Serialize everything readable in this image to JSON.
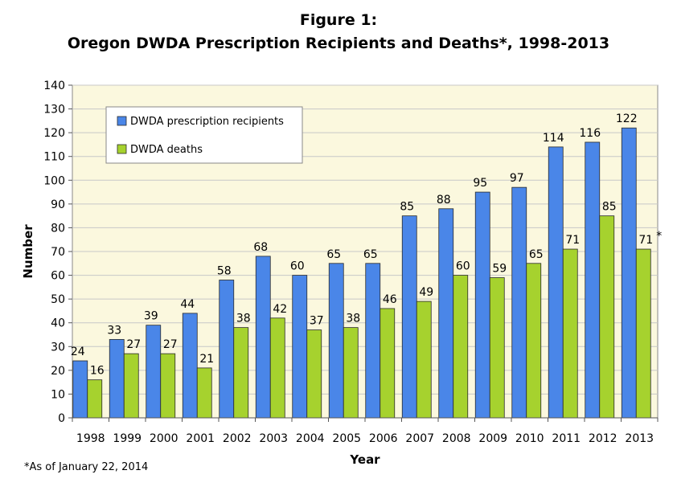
{
  "figure_label": "Figure 1:",
  "title": "Oregon DWDA Prescription Recipients and Deaths*,  1998-2013",
  "footnote": "*As of January 22, 2014",
  "colors": {
    "recipients": "#4a86e8",
    "deaths": "#a6d22e",
    "plot_bg": "#fbf8de",
    "grid": "#c8c8c8"
  },
  "chart_data": {
    "type": "bar",
    "title": "Oregon DWDA Prescription Recipients and Deaths*,  1998-2013",
    "xlabel": "Year",
    "ylabel": "Number",
    "ylim": [
      0,
      140
    ],
    "yticks": [
      0,
      10,
      20,
      30,
      40,
      50,
      60,
      70,
      80,
      90,
      100,
      110,
      120,
      130,
      140
    ],
    "grid": true,
    "legend_position": "top-left",
    "categories": [
      "1998",
      "1999",
      "2000",
      "2001",
      "2002",
      "2003",
      "2004",
      "2005",
      "2006",
      "2007",
      "2008",
      "2009",
      "2010",
      "2011",
      "2012",
      "2013"
    ],
    "series": [
      {
        "name": "DWDA prescription recipients",
        "values": [
          24,
          33,
          39,
          44,
          58,
          68,
          60,
          65,
          65,
          85,
          88,
          95,
          97,
          114,
          116,
          122
        ]
      },
      {
        "name": "DWDA deaths",
        "values": [
          16,
          27,
          27,
          21,
          38,
          42,
          37,
          38,
          46,
          49,
          60,
          59,
          65,
          71,
          85,
          71
        ]
      }
    ],
    "annotations": [
      {
        "series": 1,
        "category": "2013",
        "text": "*"
      }
    ]
  }
}
